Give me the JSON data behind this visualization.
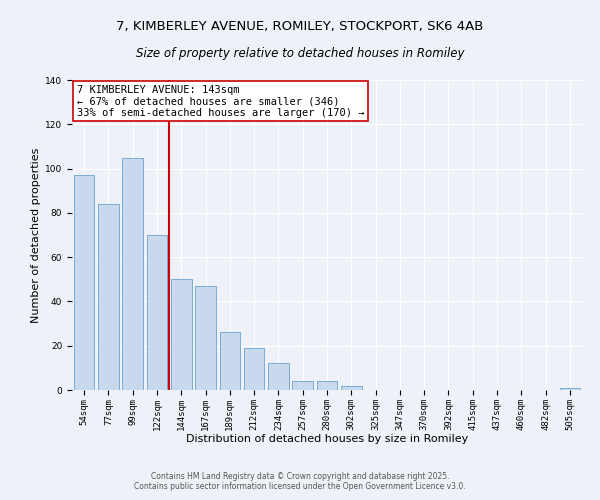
{
  "title": "7, KIMBERLEY AVENUE, ROMILEY, STOCKPORT, SK6 4AB",
  "subtitle": "Size of property relative to detached houses in Romiley",
  "xlabel": "Distribution of detached houses by size in Romiley",
  "ylabel": "Number of detached properties",
  "bar_labels": [
    "54sqm",
    "77sqm",
    "99sqm",
    "122sqm",
    "144sqm",
    "167sqm",
    "189sqm",
    "212sqm",
    "234sqm",
    "257sqm",
    "280sqm",
    "302sqm",
    "325sqm",
    "347sqm",
    "370sqm",
    "392sqm",
    "415sqm",
    "437sqm",
    "460sqm",
    "482sqm",
    "505sqm"
  ],
  "bar_values": [
    97,
    84,
    105,
    70,
    50,
    47,
    26,
    19,
    12,
    4,
    4,
    2,
    0,
    0,
    0,
    0,
    0,
    0,
    0,
    0,
    1
  ],
  "bar_color": "#c8d9ed",
  "bar_edge_color": "#7aadd4",
  "vline_color": "#cc0000",
  "annotation_text": "7 KIMBERLEY AVENUE: 143sqm\n← 67% of detached houses are smaller (346)\n33% of semi-detached houses are larger (170) →",
  "annotation_box_color": "#ffffff",
  "annotation_box_edge": "#cc0000",
  "ylim": [
    0,
    140
  ],
  "yticks": [
    0,
    20,
    40,
    60,
    80,
    100,
    120,
    140
  ],
  "bg_color": "#eef2f8",
  "footer1": "Contains HM Land Registry data © Crown copyright and database right 2025.",
  "footer2": "Contains public sector information licensed under the Open Government Licence v3.0.",
  "title_fontsize": 9.5,
  "subtitle_fontsize": 8.5,
  "axis_label_fontsize": 8,
  "tick_fontsize": 6.5,
  "annotation_fontsize": 7.5,
  "footer_fontsize": 5.5
}
